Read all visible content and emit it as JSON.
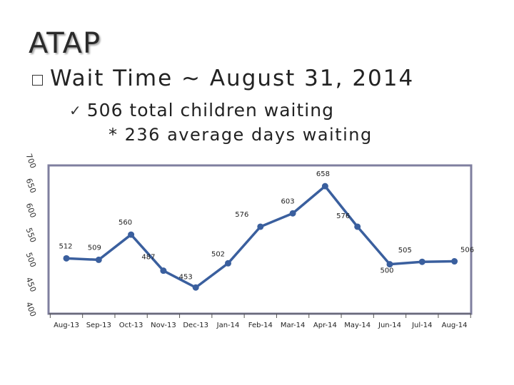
{
  "slide": {
    "title": "ATAP",
    "bullet": "Wait Time ~ August 31, 2014",
    "sub_bullet_1": "506 total children waiting",
    "sub_bullet_2": "* 236 average days waiting"
  },
  "colors": {
    "line": "#3a5f9e",
    "border": "#7f7f9f",
    "title": "#2a2a2a"
  },
  "chart_data": {
    "type": "line",
    "categories": [
      "Aug-13",
      "Sep-13",
      "Oct-13",
      "Nov-13",
      "Dec-13",
      "Jan-14",
      "Feb-14",
      "Mar-14",
      "Apr-14",
      "May-14",
      "Jun-14",
      "Jul-14",
      "Aug-14"
    ],
    "values": [
      512,
      509,
      560,
      487,
      453,
      502,
      576,
      603,
      658,
      576,
      500,
      505,
      506
    ],
    "point_labels": [
      "512",
      "509",
      "560",
      "487",
      "453",
      "502",
      "576",
      "603",
      "658",
      "576",
      "500",
      "505",
      "506"
    ],
    "yticks": [
      "400",
      "450",
      "500",
      "550",
      "600",
      "650",
      "700"
    ],
    "ylim": [
      400,
      700
    ],
    "grid": false
  }
}
